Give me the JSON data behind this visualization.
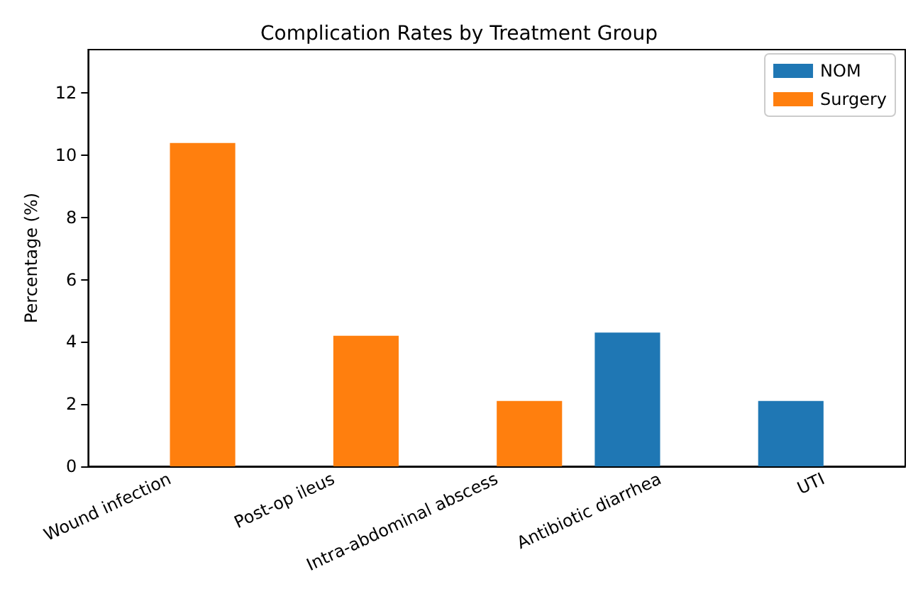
{
  "chart_data": {
    "type": "bar",
    "title": "Complication Rates by Treatment Group",
    "ylabel": "Percentage (%)",
    "categories": [
      "Wound infection",
      "Post-op ileus",
      "Intra-abdominal abscess",
      "Antibiotic diarrhea",
      "UTI"
    ],
    "series": [
      {
        "name": "NOM",
        "color": "#1f77b4",
        "values": [
          0,
          0,
          0,
          4.3,
          2.1
        ]
      },
      {
        "name": "Surgery",
        "color": "#ff7f0e",
        "values": [
          10.4,
          4.2,
          2.1,
          0,
          0
        ]
      }
    ],
    "ylim": [
      0,
      13.4
    ],
    "yticks": [
      0,
      2,
      4,
      6,
      8,
      10,
      12
    ],
    "grid": false,
    "legend": "top right"
  }
}
